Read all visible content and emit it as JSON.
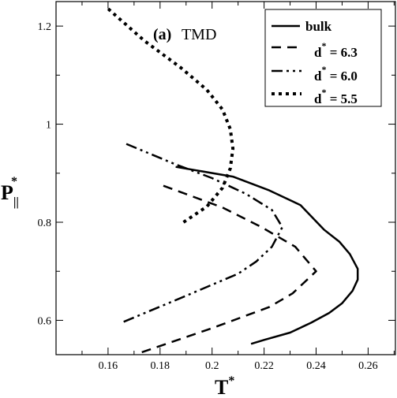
{
  "chart_data": {
    "type": "line",
    "panel_label": "(a)",
    "title": "TMD",
    "xlabel": "T",
    "xlabel_sup": "*",
    "ylabel": "P",
    "ylabel_sub": "||",
    "ylabel_sup": "*",
    "xlim": [
      0.14,
      0.2705
    ],
    "ylim": [
      0.53,
      1.25
    ],
    "xticks": [
      0.16,
      0.18,
      0.2,
      0.22,
      0.24,
      0.26
    ],
    "xtick_labels": [
      "0.16",
      "0.18",
      "0.2",
      "0.22",
      "0.24",
      "0.26"
    ],
    "yticks": [
      0.6,
      0.8,
      1.0,
      1.2
    ],
    "ytick_labels": [
      "0.6",
      "0.8",
      "1",
      "1.2"
    ],
    "legend_position": "top-right",
    "grid": false,
    "series": [
      {
        "name": "bulk",
        "name_base": "bulk",
        "name_sup": "",
        "name_rest": "",
        "style": "solid",
        "x": [
          0.215,
          0.22,
          0.23,
          0.238,
          0.245,
          0.25,
          0.254,
          0.256,
          0.256,
          0.253,
          0.249,
          0.243,
          0.234,
          0.222,
          0.208,
          0.186
        ],
        "y": [
          0.552,
          0.56,
          0.575,
          0.595,
          0.615,
          0.635,
          0.66,
          0.683,
          0.705,
          0.735,
          0.76,
          0.785,
          0.835,
          0.865,
          0.893,
          0.913
        ]
      },
      {
        "name": "d* = 6.3",
        "name_base": "d",
        "name_sup": "*",
        "name_rest": " = 6.3",
        "style": "dashed",
        "x": [
          0.173,
          0.2,
          0.222,
          0.231,
          0.24,
          0.232,
          0.219,
          0.204,
          0.18
        ],
        "y": [
          0.535,
          0.584,
          0.627,
          0.655,
          0.7,
          0.75,
          0.79,
          0.83,
          0.877
        ]
      },
      {
        "name": "d* = 6.0",
        "name_base": "d",
        "name_sup": "*",
        "name_rest": " = 6.0",
        "style": "dashdotdot",
        "x": [
          0.166,
          0.19,
          0.21,
          0.217,
          0.223,
          0.227,
          0.223,
          0.213,
          0.2,
          0.185,
          0.166
        ],
        "y": [
          0.597,
          0.65,
          0.695,
          0.72,
          0.75,
          0.79,
          0.825,
          0.858,
          0.89,
          0.92,
          0.962
        ]
      },
      {
        "name": "d* = 5.5",
        "name_base": "d",
        "name_sup": "*",
        "name_rest": " = 5.5",
        "style": "dotted",
        "x": [
          0.189,
          0.198,
          0.204,
          0.207,
          0.208,
          0.207,
          0.204,
          0.198,
          0.188,
          0.174,
          0.159
        ],
        "y": [
          0.8,
          0.832,
          0.87,
          0.91,
          0.95,
          0.99,
          1.03,
          1.07,
          1.115,
          1.17,
          1.24
        ]
      }
    ]
  }
}
